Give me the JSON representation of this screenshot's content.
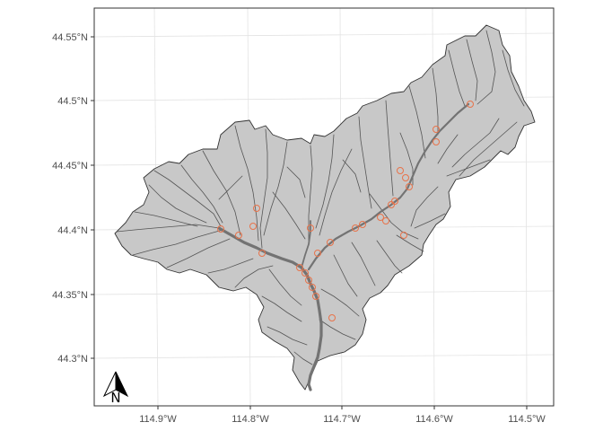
{
  "map": {
    "type": "watershed-map",
    "title": "",
    "x_axis": {
      "ticks": [
        {
          "value": -114.9,
          "label": "114.9°W"
        },
        {
          "value": -114.8,
          "label": "114.8°W"
        },
        {
          "value": -114.7,
          "label": "114.7°W"
        },
        {
          "value": -114.6,
          "label": "114.6°W"
        },
        {
          "value": -114.5,
          "label": "114.5°W"
        }
      ]
    },
    "y_axis": {
      "ticks": [
        {
          "value": 44.3,
          "label": "44.3°N"
        },
        {
          "value": 44.35,
          "label": "44.35°N"
        },
        {
          "value": 44.4,
          "label": "44.4°N"
        },
        {
          "value": 44.45,
          "label": "44.45°N"
        },
        {
          "value": 44.5,
          "label": "44.5°N"
        },
        {
          "value": 44.55,
          "label": "44.55°N"
        }
      ]
    },
    "north_arrow": {
      "label": "N"
    },
    "colors": {
      "panel_border": "#333333",
      "grid": "#ebebeb",
      "watershed_fill": "#c8c8c8",
      "watershed_outline": "#333333",
      "streams": "#4d4d4d",
      "main_channel": "#737373",
      "sample_sites": "#e8734a"
    },
    "legend": "none"
  }
}
